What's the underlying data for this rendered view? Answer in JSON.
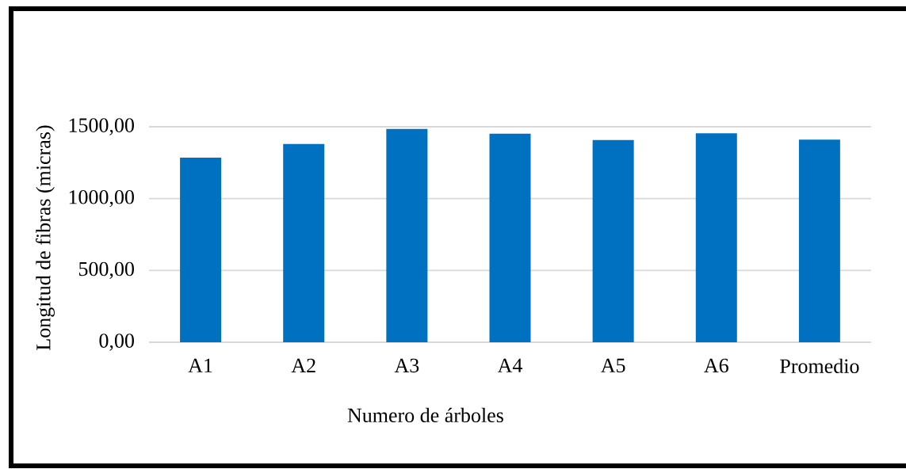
{
  "chart_data": {
    "type": "bar",
    "xlabel": "Numero de árboles",
    "ylabel": "Longitud de fibras (micras)",
    "categories": [
      "A1",
      "A2",
      "A3",
      "A4",
      "A5",
      "A6",
      "Promedio"
    ],
    "values": [
      1285,
      1380,
      1485,
      1452,
      1408,
      1455,
      1411
    ],
    "color": "#0070c0",
    "ylim": [
      0,
      1500
    ],
    "yticks": [
      {
        "value": 0,
        "label": "0,00"
      },
      {
        "value": 500,
        "label": "500,00"
      },
      {
        "value": 1000,
        "label": "1000,00"
      },
      {
        "value": 1500,
        "label": "1500,00"
      }
    ],
    "grid": "y"
  }
}
